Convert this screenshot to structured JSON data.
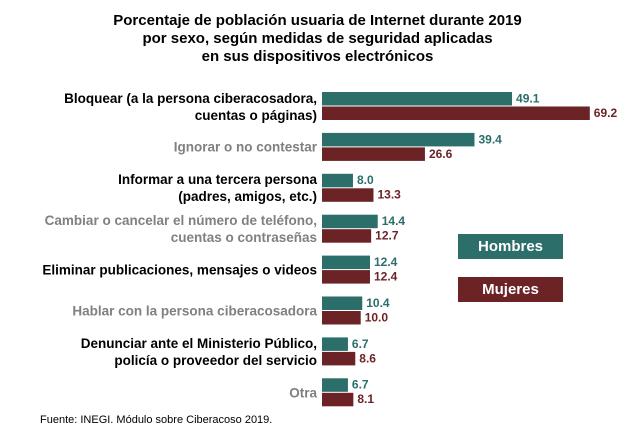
{
  "chart_data": {
    "type": "bar",
    "orientation": "horizontal",
    "title": "Porcentaje de población usuaria de Internet durante 2019\npor sexo, según medidas de seguridad aplicadas\nen sus dispositivos electrónicos",
    "categories": [
      "Bloquear (a la persona ciberacosadora,\ncuentas o páginas)",
      "Ignorar o no contestar",
      "Informar a una tercera persona\n(padres, amigos, etc.)",
      "Cambiar o cancelar el número de teléfono,\ncuentas o contraseñas",
      "Eliminar publicaciones, mensajes o videos",
      "Hablar con la persona ciberacosadora",
      "Denunciar ante el Ministerio Público,\npolicía o proveedor del servicio",
      "Otra"
    ],
    "series": [
      {
        "name": "Hombres",
        "color": "#2b6e6a",
        "values": [
          49.1,
          39.4,
          8.0,
          14.4,
          12.4,
          10.4,
          6.7,
          6.7
        ],
        "value_labels": [
          "49.1",
          "39.4",
          "8.0",
          "14.4",
          "12.4",
          "10.4",
          "6.7",
          "6.7"
        ]
      },
      {
        "name": "Mujeres",
        "color": "#6b2326",
        "values": [
          69.2,
          26.6,
          13.3,
          12.7,
          12.4,
          10.0,
          8.6,
          8.1
        ],
        "value_labels": [
          "69.2",
          "26.6",
          "13.3",
          "12.7",
          "12.4",
          "10.0",
          "8.6",
          "8.1"
        ]
      }
    ],
    "source": "Fuente: INEGI. Módulo sobre Ciberacoso 2019."
  }
}
